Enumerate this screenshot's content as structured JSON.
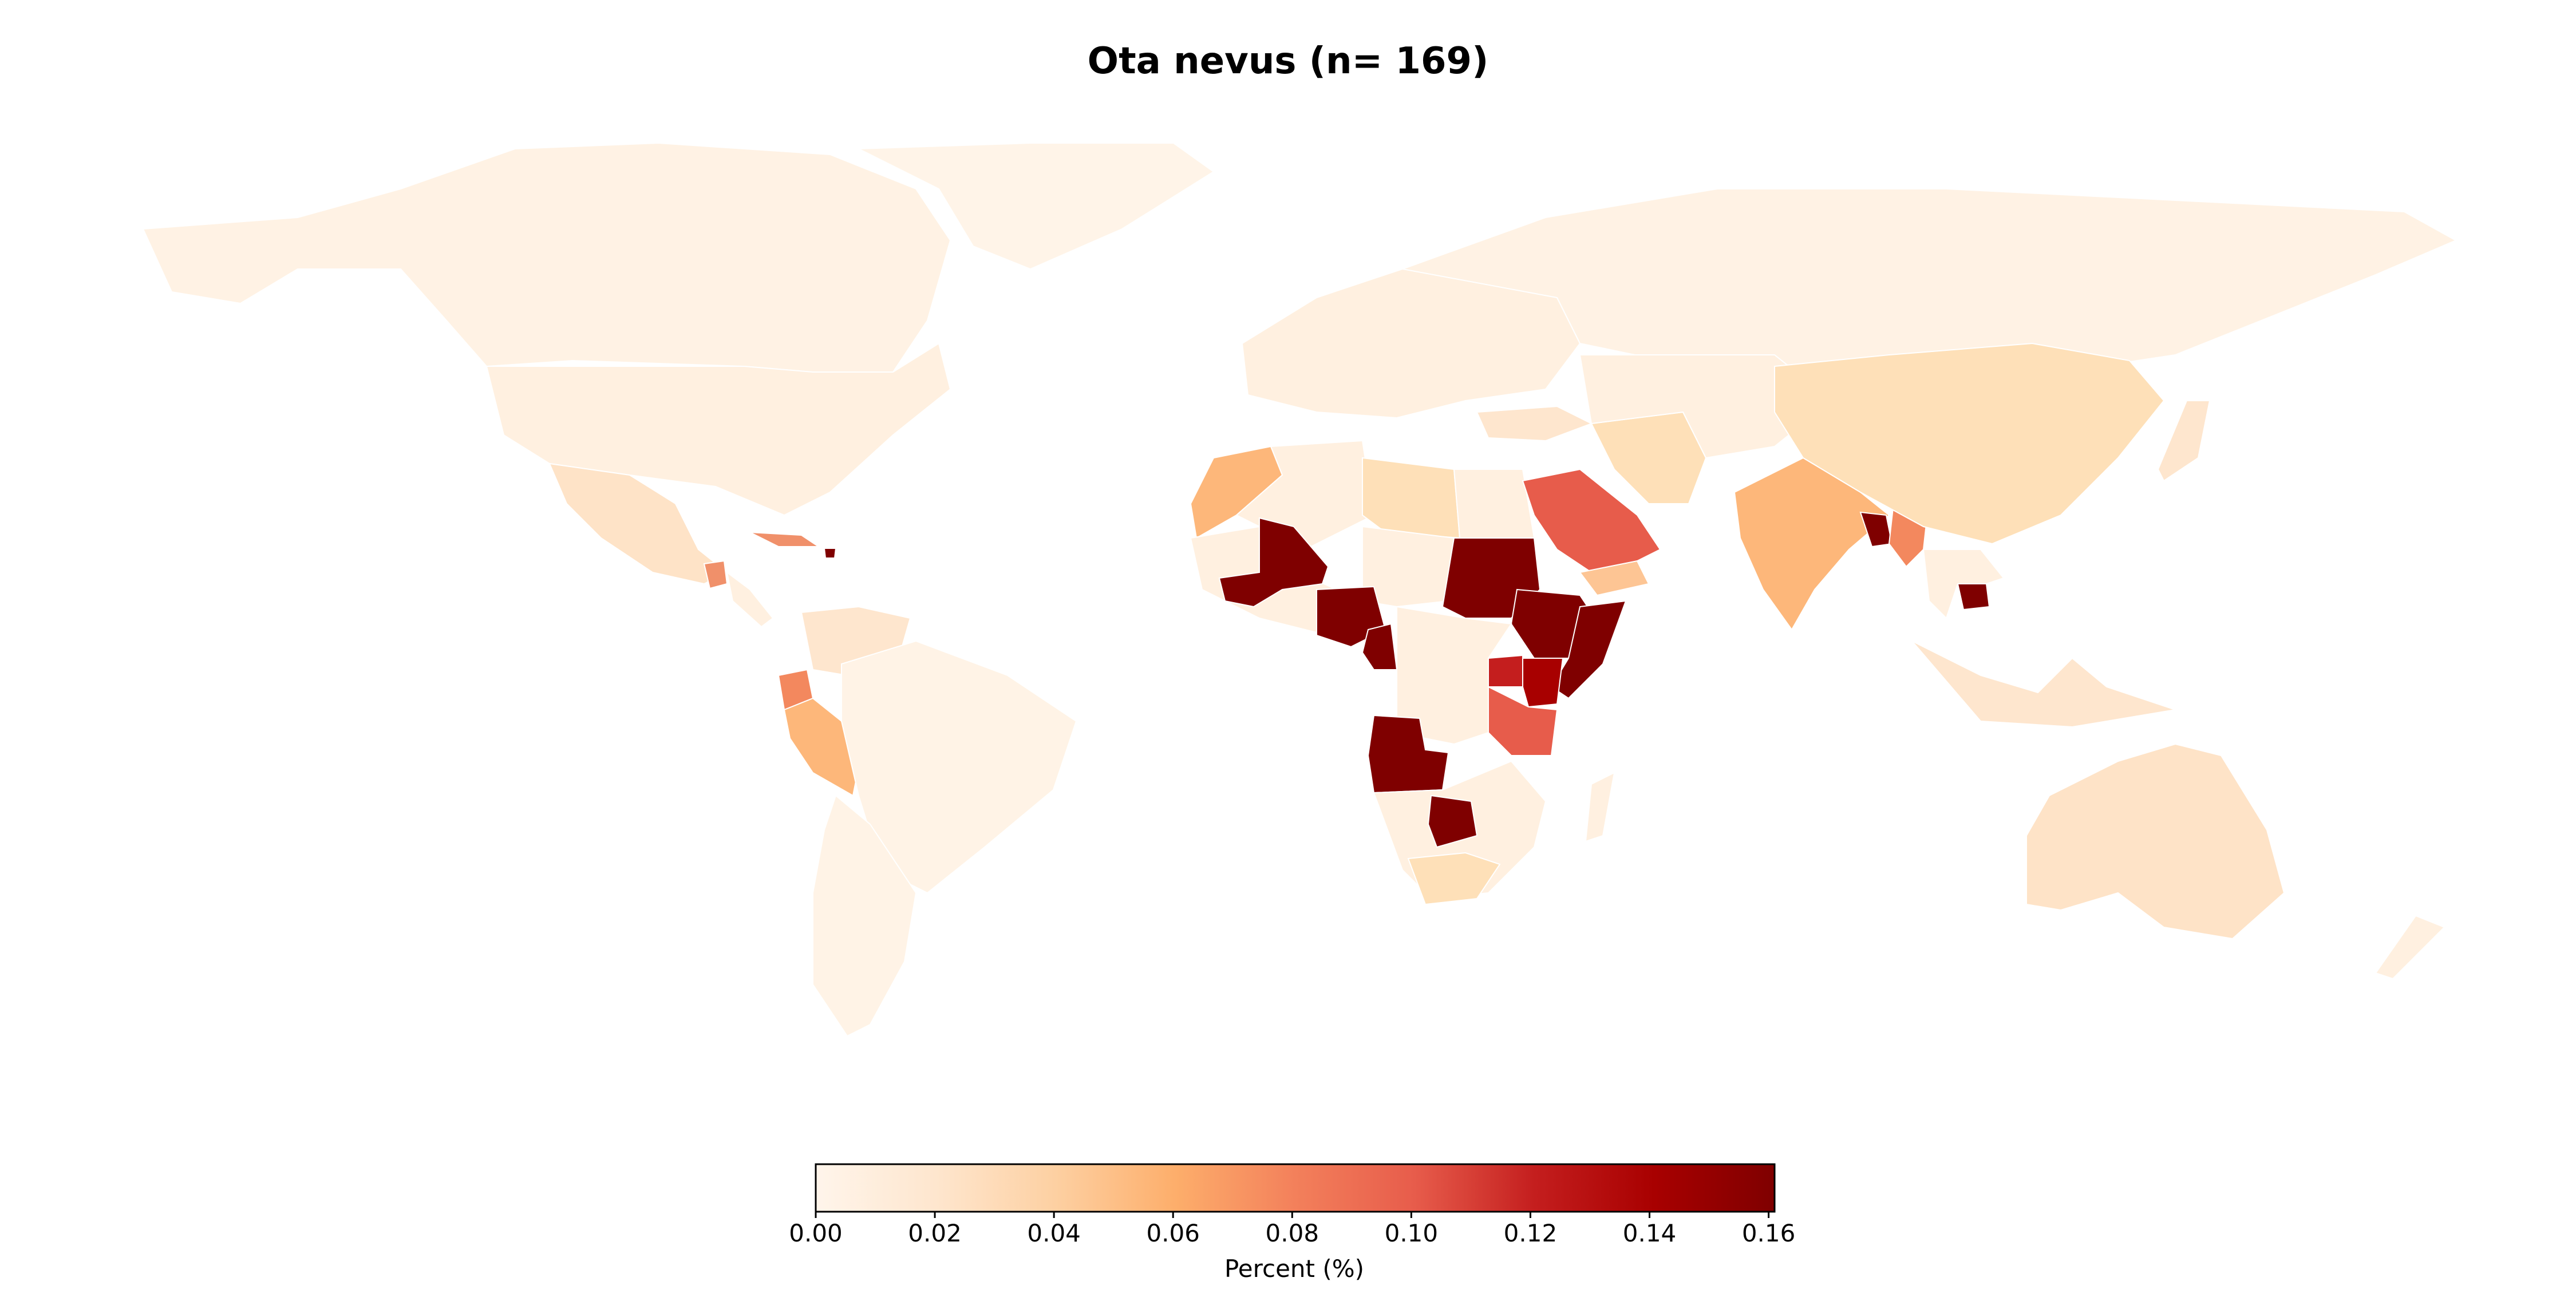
{
  "title": "Ota nevus (n= 169)",
  "colorbar": {
    "label": "Percent (%)",
    "ticks": [
      "0.00",
      "0.02",
      "0.04",
      "0.06",
      "0.08",
      "0.10",
      "0.12",
      "0.14",
      "0.16"
    ],
    "tick_values": [
      0,
      0.02,
      0.04,
      0.06,
      0.08,
      0.1,
      0.12,
      0.14,
      0.16
    ],
    "range": [
      0,
      0.161
    ],
    "colormap_stops": [
      "#fff5eb",
      "#fee6ce",
      "#fdd0a2",
      "#fdae6b",
      "#f3805b",
      "#e75c4b",
      "#c41e1e",
      "#a80000",
      "#7f0000"
    ]
  },
  "regions": [
    {
      "name": "Mali",
      "value": 0.16
    },
    {
      "name": "Nigeria",
      "value": 0.16
    },
    {
      "name": "Cameroon",
      "value": 0.16
    },
    {
      "name": "Sudan",
      "value": 0.16
    },
    {
      "name": "Ethiopia",
      "value": 0.16
    },
    {
      "name": "Somalia",
      "value": 0.16
    },
    {
      "name": "Angola",
      "value": 0.16
    },
    {
      "name": "Zimbabwe",
      "value": 0.16
    },
    {
      "name": "Bangladesh",
      "value": 0.16
    },
    {
      "name": "Cambodia",
      "value": 0.16
    },
    {
      "name": "Haiti",
      "value": 0.16
    },
    {
      "name": "Kenya",
      "value": 0.13
    },
    {
      "name": "Uganda",
      "value": 0.12
    },
    {
      "name": "Tanzania",
      "value": 0.09
    },
    {
      "name": "Saudi Arabia",
      "value": 0.09
    },
    {
      "name": "Ecuador",
      "value": 0.075
    },
    {
      "name": "Guatemala",
      "value": 0.07
    },
    {
      "name": "Cuba",
      "value": 0.07
    },
    {
      "name": "Myanmar",
      "value": 0.07
    },
    {
      "name": "India",
      "value": 0.055
    },
    {
      "name": "Peru",
      "value": 0.05
    },
    {
      "name": "Morocco",
      "value": 0.045
    },
    {
      "name": "Yemen",
      "value": 0.04
    },
    {
      "name": "Libya",
      "value": 0.035
    },
    {
      "name": "China",
      "value": 0.03
    },
    {
      "name": "Iran",
      "value": 0.03
    },
    {
      "name": "Australia",
      "value": 0.025
    },
    {
      "name": "Mexico",
      "value": 0.025
    },
    {
      "name": "South Africa",
      "value": 0.025
    },
    {
      "name": "Turkey",
      "value": 0.02
    },
    {
      "name": "Venezuela",
      "value": 0.02
    },
    {
      "name": "Japan",
      "value": 0.02
    },
    {
      "name": "Indonesia",
      "value": 0.015
    },
    {
      "name": "Egypt",
      "value": 0.01
    },
    {
      "name": "Brazil",
      "value": 0.008
    },
    {
      "name": "United States",
      "value": 0.008
    },
    {
      "name": "Canada",
      "value": 0.005
    },
    {
      "name": "Russia",
      "value": 0.005
    },
    {
      "name": "Algeria",
      "value": 0.006
    },
    {
      "name": "Europe",
      "value": 0.01
    }
  ]
}
